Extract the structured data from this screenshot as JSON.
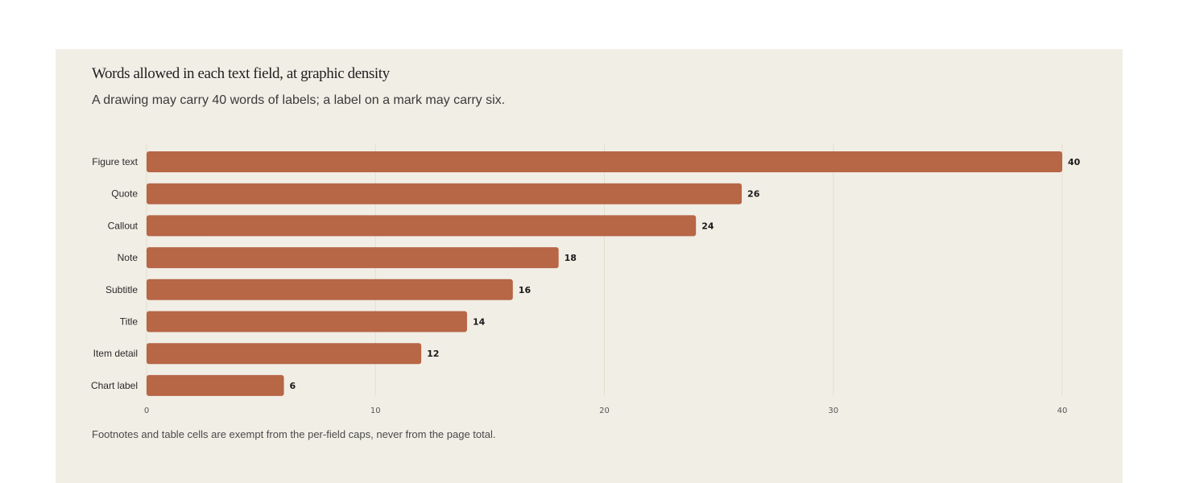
{
  "chart_data": {
    "type": "bar",
    "orientation": "horizontal",
    "title": "Words allowed in each text field, at graphic density",
    "subtitle": "A drawing may carry 40 words of labels; a label on a mark may carry six.",
    "categories": [
      "Figure text",
      "Quote",
      "Callout",
      "Note",
      "Subtitle",
      "Title",
      "Item detail",
      "Chart label"
    ],
    "values": [
      40,
      26,
      24,
      18,
      16,
      14,
      12,
      6
    ],
    "xlim": [
      0,
      40
    ],
    "xticks": [
      0,
      10,
      20,
      30,
      40
    ],
    "xlabel": "",
    "ylabel": "",
    "grid": "vertical",
    "legend": "none",
    "bar_color": "#b76646",
    "note": "Footnotes and table cells are exempt from the per-field caps, never from the page total."
  }
}
